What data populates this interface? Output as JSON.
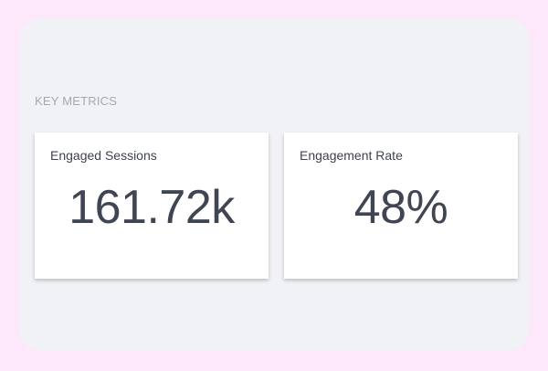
{
  "section": {
    "title": "KEY METRICS"
  },
  "metrics": [
    {
      "label": "Engaged Sessions",
      "value": "161.72k"
    },
    {
      "label": "Engagement Rate",
      "value": "48%"
    }
  ],
  "colors": {
    "page_background": "#fde8fb",
    "panel_background": "#f1f2f6",
    "card_background": "#ffffff",
    "text_primary": "#3f4552",
    "text_muted": "#a5a8b2"
  }
}
